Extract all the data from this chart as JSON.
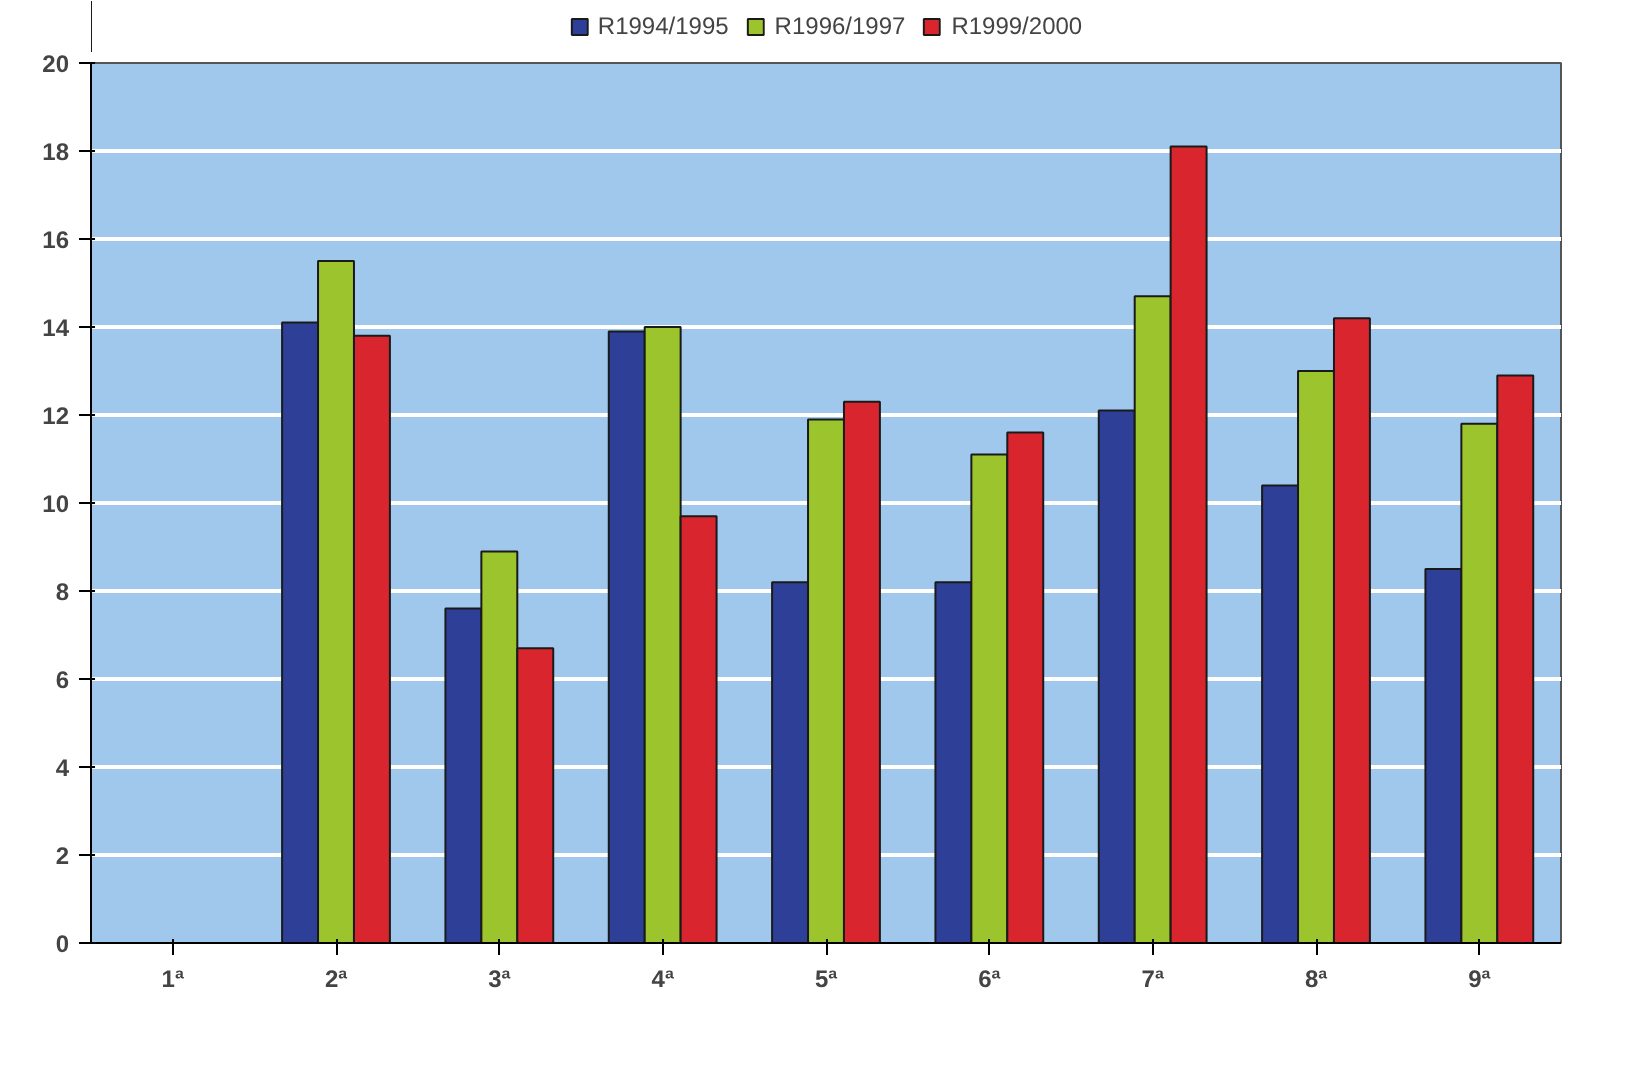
{
  "chart_data": {
    "type": "bar",
    "categories": [
      "1ª",
      "2ª",
      "3ª",
      "4ª",
      "5ª",
      "6ª",
      "7ª",
      "8ª",
      "9ª"
    ],
    "series": [
      {
        "name": "R1994/1995",
        "color": "#2e3f98",
        "values": [
          null,
          14.1,
          7.6,
          13.9,
          8.2,
          8.2,
          12.1,
          10.4,
          8.5
        ]
      },
      {
        "name": "R1996/1997",
        "color": "#9cc42c",
        "values": [
          null,
          15.5,
          8.9,
          14.0,
          11.9,
          11.1,
          14.7,
          13.0,
          11.8
        ]
      },
      {
        "name": "R1999/2000",
        "color": "#d9262e",
        "values": [
          null,
          13.8,
          6.7,
          9.7,
          12.3,
          11.6,
          18.1,
          14.2,
          12.9
        ]
      }
    ],
    "ylim": [
      0,
      20
    ],
    "yticks": [
      0,
      2,
      4,
      6,
      8,
      10,
      12,
      14,
      16,
      18,
      20
    ],
    "grid": "y",
    "legend": "top"
  }
}
